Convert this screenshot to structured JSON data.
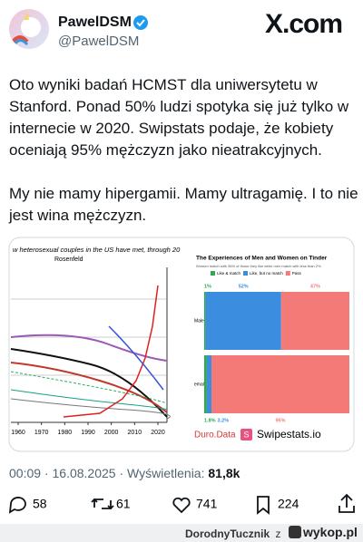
{
  "header": {
    "name": "PawelDSM",
    "handle": "@PawelDSM",
    "site": "X.com"
  },
  "tweet": {
    "paragraphs": [
      "Oto wyniki badań HCMST dla uniwersytetu w Stanford. Ponad 50% ludzi spotyka się już tylko w internecie w 2020. Swipstats podaje, że kobiety oceniają 95% mężczyzn jako nieatrakcyjnych.",
      "My nie mamy hipergamii. Mamy ultragamię. I to nie jest wina mężczyzn."
    ]
  },
  "left_chart": {
    "title": "w heterosexual couples in the US have met, through 20",
    "subtitle": "Rosenfeld",
    "xticks": [
      1960,
      1970,
      1980,
      1990,
      2000,
      2010,
      2020
    ]
  },
  "tinder_chart": {
    "title": "The Experiences of Men and Women on Tinder",
    "subtitle": "Women match with 36% of those they like while men match with less than 2%",
    "legend": [
      {
        "name": "Like & match",
        "color": "#2fa84f"
      },
      {
        "name": "Like, but no match",
        "color": "#3b8de0"
      },
      {
        "name": "Pass",
        "color": "#f47a78"
      }
    ],
    "rows": [
      {
        "label": "Male",
        "values": [
          1,
          52,
          47
        ],
        "value_labels": [
          "1%",
          "52%",
          "47%"
        ]
      },
      {
        "label": "emale",
        "values": [
          1.8,
          3.2,
          95
        ],
        "value_labels": [
          "1.8%",
          "3.2%",
          "95%"
        ]
      }
    ],
    "sources": [
      "Duro.Data",
      "Swipestats.io"
    ]
  },
  "meta": {
    "time": "00:09",
    "date": "16.08.2025",
    "views_label": "Wyświetlenia:",
    "views": "81,8k"
  },
  "actions": {
    "replies": 58,
    "reposts": 61,
    "likes": 741,
    "bookmarks": 224
  },
  "watermark": {
    "user": "DorodnyTucznik",
    "joiner": "z",
    "site": "wykop.pl"
  }
}
